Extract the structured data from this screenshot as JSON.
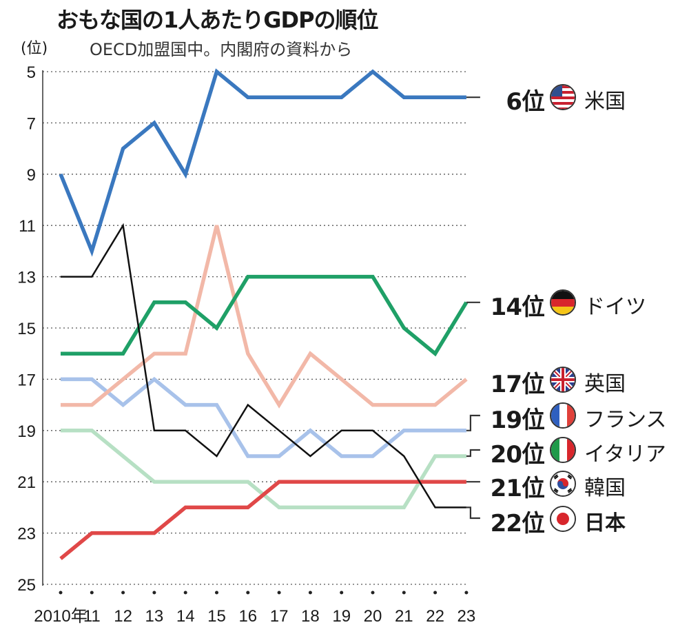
{
  "title": "おもな国の1人あたりGDPの順位",
  "subtitle": "OECD加盟国中。内閣府の資料から",
  "unit": "(位)",
  "chart_data": {
    "type": "line",
    "ylabel": "(位)",
    "y_inverted": true,
    "ylim": [
      5,
      25
    ],
    "yticks": [
      "5",
      "7",
      "9",
      "11",
      "13",
      "15",
      "17",
      "19",
      "21",
      "23",
      "25"
    ],
    "x": [
      2010,
      2011,
      2012,
      2013,
      2014,
      2015,
      2016,
      2017,
      2018,
      2019,
      2020,
      2021,
      2022,
      2023
    ],
    "xtick_labels": [
      "2010年",
      "11",
      "12",
      "13",
      "14",
      "15",
      "16",
      "17",
      "18",
      "19",
      "20",
      "21",
      "22",
      "23"
    ],
    "grid": "horizontal dotted",
    "series": [
      {
        "name": "米国",
        "color": "#3a78bf",
        "values": [
          9,
          12,
          8,
          7,
          9,
          5,
          6,
          6,
          6,
          6,
          5,
          6,
          6,
          6
        ]
      },
      {
        "name": "ドイツ",
        "color": "#1fa067",
        "values": [
          16,
          16,
          16,
          14,
          14,
          15,
          13,
          13,
          13,
          13,
          13,
          15,
          16,
          14
        ]
      },
      {
        "name": "英国",
        "color": "#f2b8a8",
        "values": [
          18,
          18,
          17,
          16,
          16,
          11,
          16,
          18,
          16,
          17,
          18,
          18,
          18,
          17
        ]
      },
      {
        "name": "フランス",
        "color": "#a8c2ea",
        "values": [
          17,
          17,
          18,
          17,
          18,
          18,
          20,
          20,
          19,
          20,
          20,
          19,
          19,
          19
        ]
      },
      {
        "name": "イタリア",
        "color": "#b7e0c4",
        "values": [
          19,
          19,
          20,
          21,
          21,
          21,
          21,
          22,
          22,
          22,
          22,
          22,
          20,
          20
        ]
      },
      {
        "name": "韓国",
        "color": "#e04848",
        "values": [
          24,
          23,
          23,
          23,
          22,
          22,
          22,
          21,
          21,
          21,
          21,
          21,
          21,
          21
        ]
      },
      {
        "name": "日本",
        "color": "#111111",
        "values": [
          13,
          13,
          11,
          19,
          19,
          20,
          18,
          19,
          20,
          19,
          19,
          20,
          22,
          22
        ]
      }
    ],
    "end_labels": [
      {
        "series": "米国",
        "rank": "6位",
        "country": "米国"
      },
      {
        "series": "ドイツ",
        "rank": "14位",
        "country": "ドイツ"
      },
      {
        "series": "英国",
        "rank": "17位",
        "country": "英国"
      },
      {
        "series": "フランス",
        "rank": "19位",
        "country": "フランス"
      },
      {
        "series": "イタリア",
        "rank": "20位",
        "country": "イタリア"
      },
      {
        "series": "韓国",
        "rank": "21位",
        "country": "韓国"
      },
      {
        "series": "日本",
        "rank": "22位",
        "country": "日本"
      }
    ]
  }
}
